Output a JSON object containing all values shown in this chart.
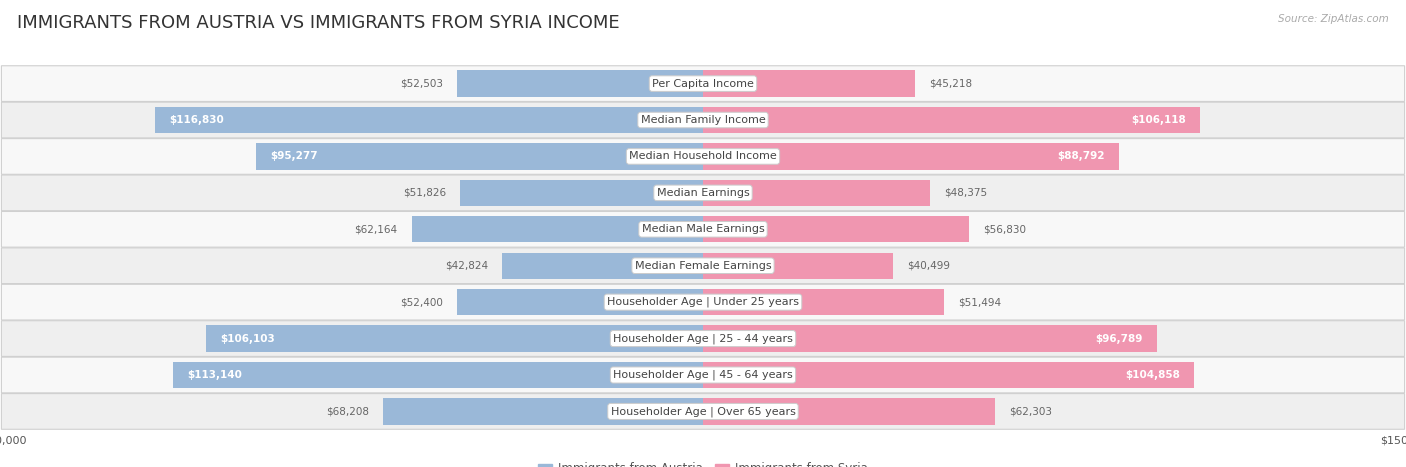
{
  "title": "IMMIGRANTS FROM AUSTRIA VS IMMIGRANTS FROM SYRIA INCOME",
  "source": "Source: ZipAtlas.com",
  "categories": [
    "Per Capita Income",
    "Median Family Income",
    "Median Household Income",
    "Median Earnings",
    "Median Male Earnings",
    "Median Female Earnings",
    "Householder Age | Under 25 years",
    "Householder Age | 25 - 44 years",
    "Householder Age | 45 - 64 years",
    "Householder Age | Over 65 years"
  ],
  "austria_values": [
    52503,
    116830,
    95277,
    51826,
    62164,
    42824,
    52400,
    106103,
    113140,
    68208
  ],
  "syria_values": [
    45218,
    106118,
    88792,
    48375,
    56830,
    40499,
    51494,
    96789,
    104858,
    62303
  ],
  "austria_color": "#9ab8d8",
  "syria_color": "#f096b0",
  "austria_legend_color": "#9ab8d8",
  "syria_legend_color": "#f096b0",
  "max_val": 150000,
  "title_fontsize": 13,
  "label_fontsize": 8,
  "value_fontsize": 7.5,
  "legend_fontsize": 8.5,
  "source_fontsize": 7.5,
  "inside_threshold": 75000,
  "row_colors": [
    "#f8f8f8",
    "#efefef",
    "#f8f8f8",
    "#efefef",
    "#f8f8f8",
    "#efefef",
    "#f8f8f8",
    "#efefef",
    "#f8f8f8",
    "#efefef"
  ]
}
